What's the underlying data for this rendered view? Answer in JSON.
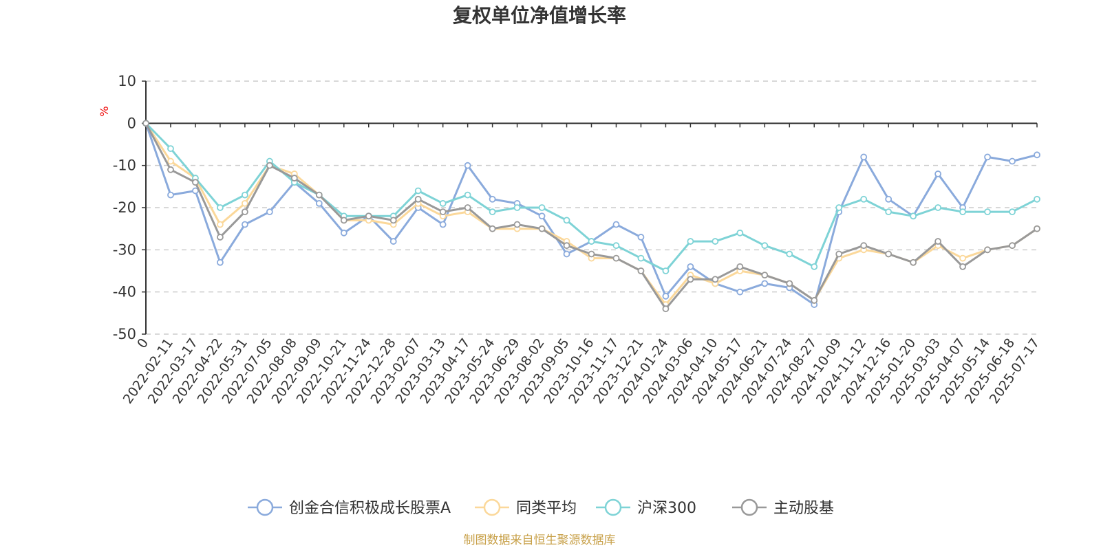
{
  "chart_data": {
    "type": "line",
    "title": "复权单位净值增长率",
    "ylabel": "%",
    "xlabel": "",
    "ylim": [
      -50,
      10
    ],
    "yticks": [
      10,
      0,
      -10,
      -20,
      -30,
      -40,
      -50
    ],
    "grid": true,
    "legend_position": "bottom",
    "source": "制图数据来自恒生聚源数据库",
    "categories": [
      "0",
      "2022-02-11",
      "2022-03-17",
      "2022-04-22",
      "2022-05-31",
      "2022-07-05",
      "2022-08-08",
      "2022-09-09",
      "2022-10-21",
      "2022-11-24",
      "2022-12-28",
      "2023-02-07",
      "2023-03-13",
      "2023-04-17",
      "2023-05-24",
      "2023-06-29",
      "2023-08-02",
      "2023-09-05",
      "2023-10-16",
      "2023-11-17",
      "2023-12-21",
      "2024-01-24",
      "2024-03-06",
      "2024-04-10",
      "2024-05-17",
      "2024-06-21",
      "2024-07-24",
      "2024-08-27",
      "2024-10-09",
      "2024-11-12",
      "2024-12-16",
      "2025-01-20",
      "2025-03-03",
      "2025-04-07",
      "2025-05-14",
      "2025-06-18",
      "2025-07-17"
    ],
    "series": [
      {
        "name": "创金合信积极成长股票A",
        "color": "#8aaadc",
        "values": [
          0,
          -17,
          -16,
          -33,
          -24,
          -21,
          -14,
          -19,
          -26,
          -22,
          -28,
          -20,
          -24,
          -10,
          -18,
          -19,
          -22,
          -31,
          -28,
          -24,
          -27,
          -41,
          -34,
          -38,
          -40,
          -38,
          -39,
          -43,
          -21,
          -8,
          -18,
          -22,
          -12,
          -20,
          -8,
          -9,
          -7.5
        ]
      },
      {
        "name": "同类平均",
        "color": "#fbd89a",
        "values": [
          0,
          -9,
          -13,
          -24,
          -19,
          -10,
          -12,
          -17,
          -23,
          -23,
          -24,
          -19,
          -22,
          -21,
          -25,
          -25,
          -25,
          -28,
          -32,
          -32,
          -35,
          -43,
          -36,
          -38,
          -35,
          -36,
          -38,
          -42,
          -32,
          -30,
          -31,
          -33,
          -29,
          -32,
          -30,
          -29,
          -25
        ]
      },
      {
        "name": "沪深300",
        "color": "#7ed3d6",
        "values": [
          0,
          -6,
          -13,
          -20,
          -17,
          -9,
          -14,
          -17,
          -22,
          -22,
          -22,
          -16,
          -19,
          -17,
          -21,
          -20,
          -20,
          -23,
          -28,
          -29,
          -32,
          -35,
          -28,
          -28,
          -26,
          -29,
          -31,
          -34,
          -20,
          -18,
          -21,
          -22,
          -20,
          -21,
          -21,
          -21,
          -18
        ]
      },
      {
        "name": "主动股基",
        "color": "#999999",
        "values": [
          0,
          -11,
          -14,
          -27,
          -21,
          -10,
          -13,
          -17,
          -23,
          -22,
          -23,
          -18,
          -21,
          -20,
          -25,
          -24,
          -25,
          -29,
          -31,
          -32,
          -35,
          -44,
          -37,
          -37,
          -34,
          -36,
          -38,
          -42,
          -31,
          -29,
          -31,
          -33,
          -28,
          -34,
          -30,
          -29,
          -25
        ]
      }
    ]
  }
}
